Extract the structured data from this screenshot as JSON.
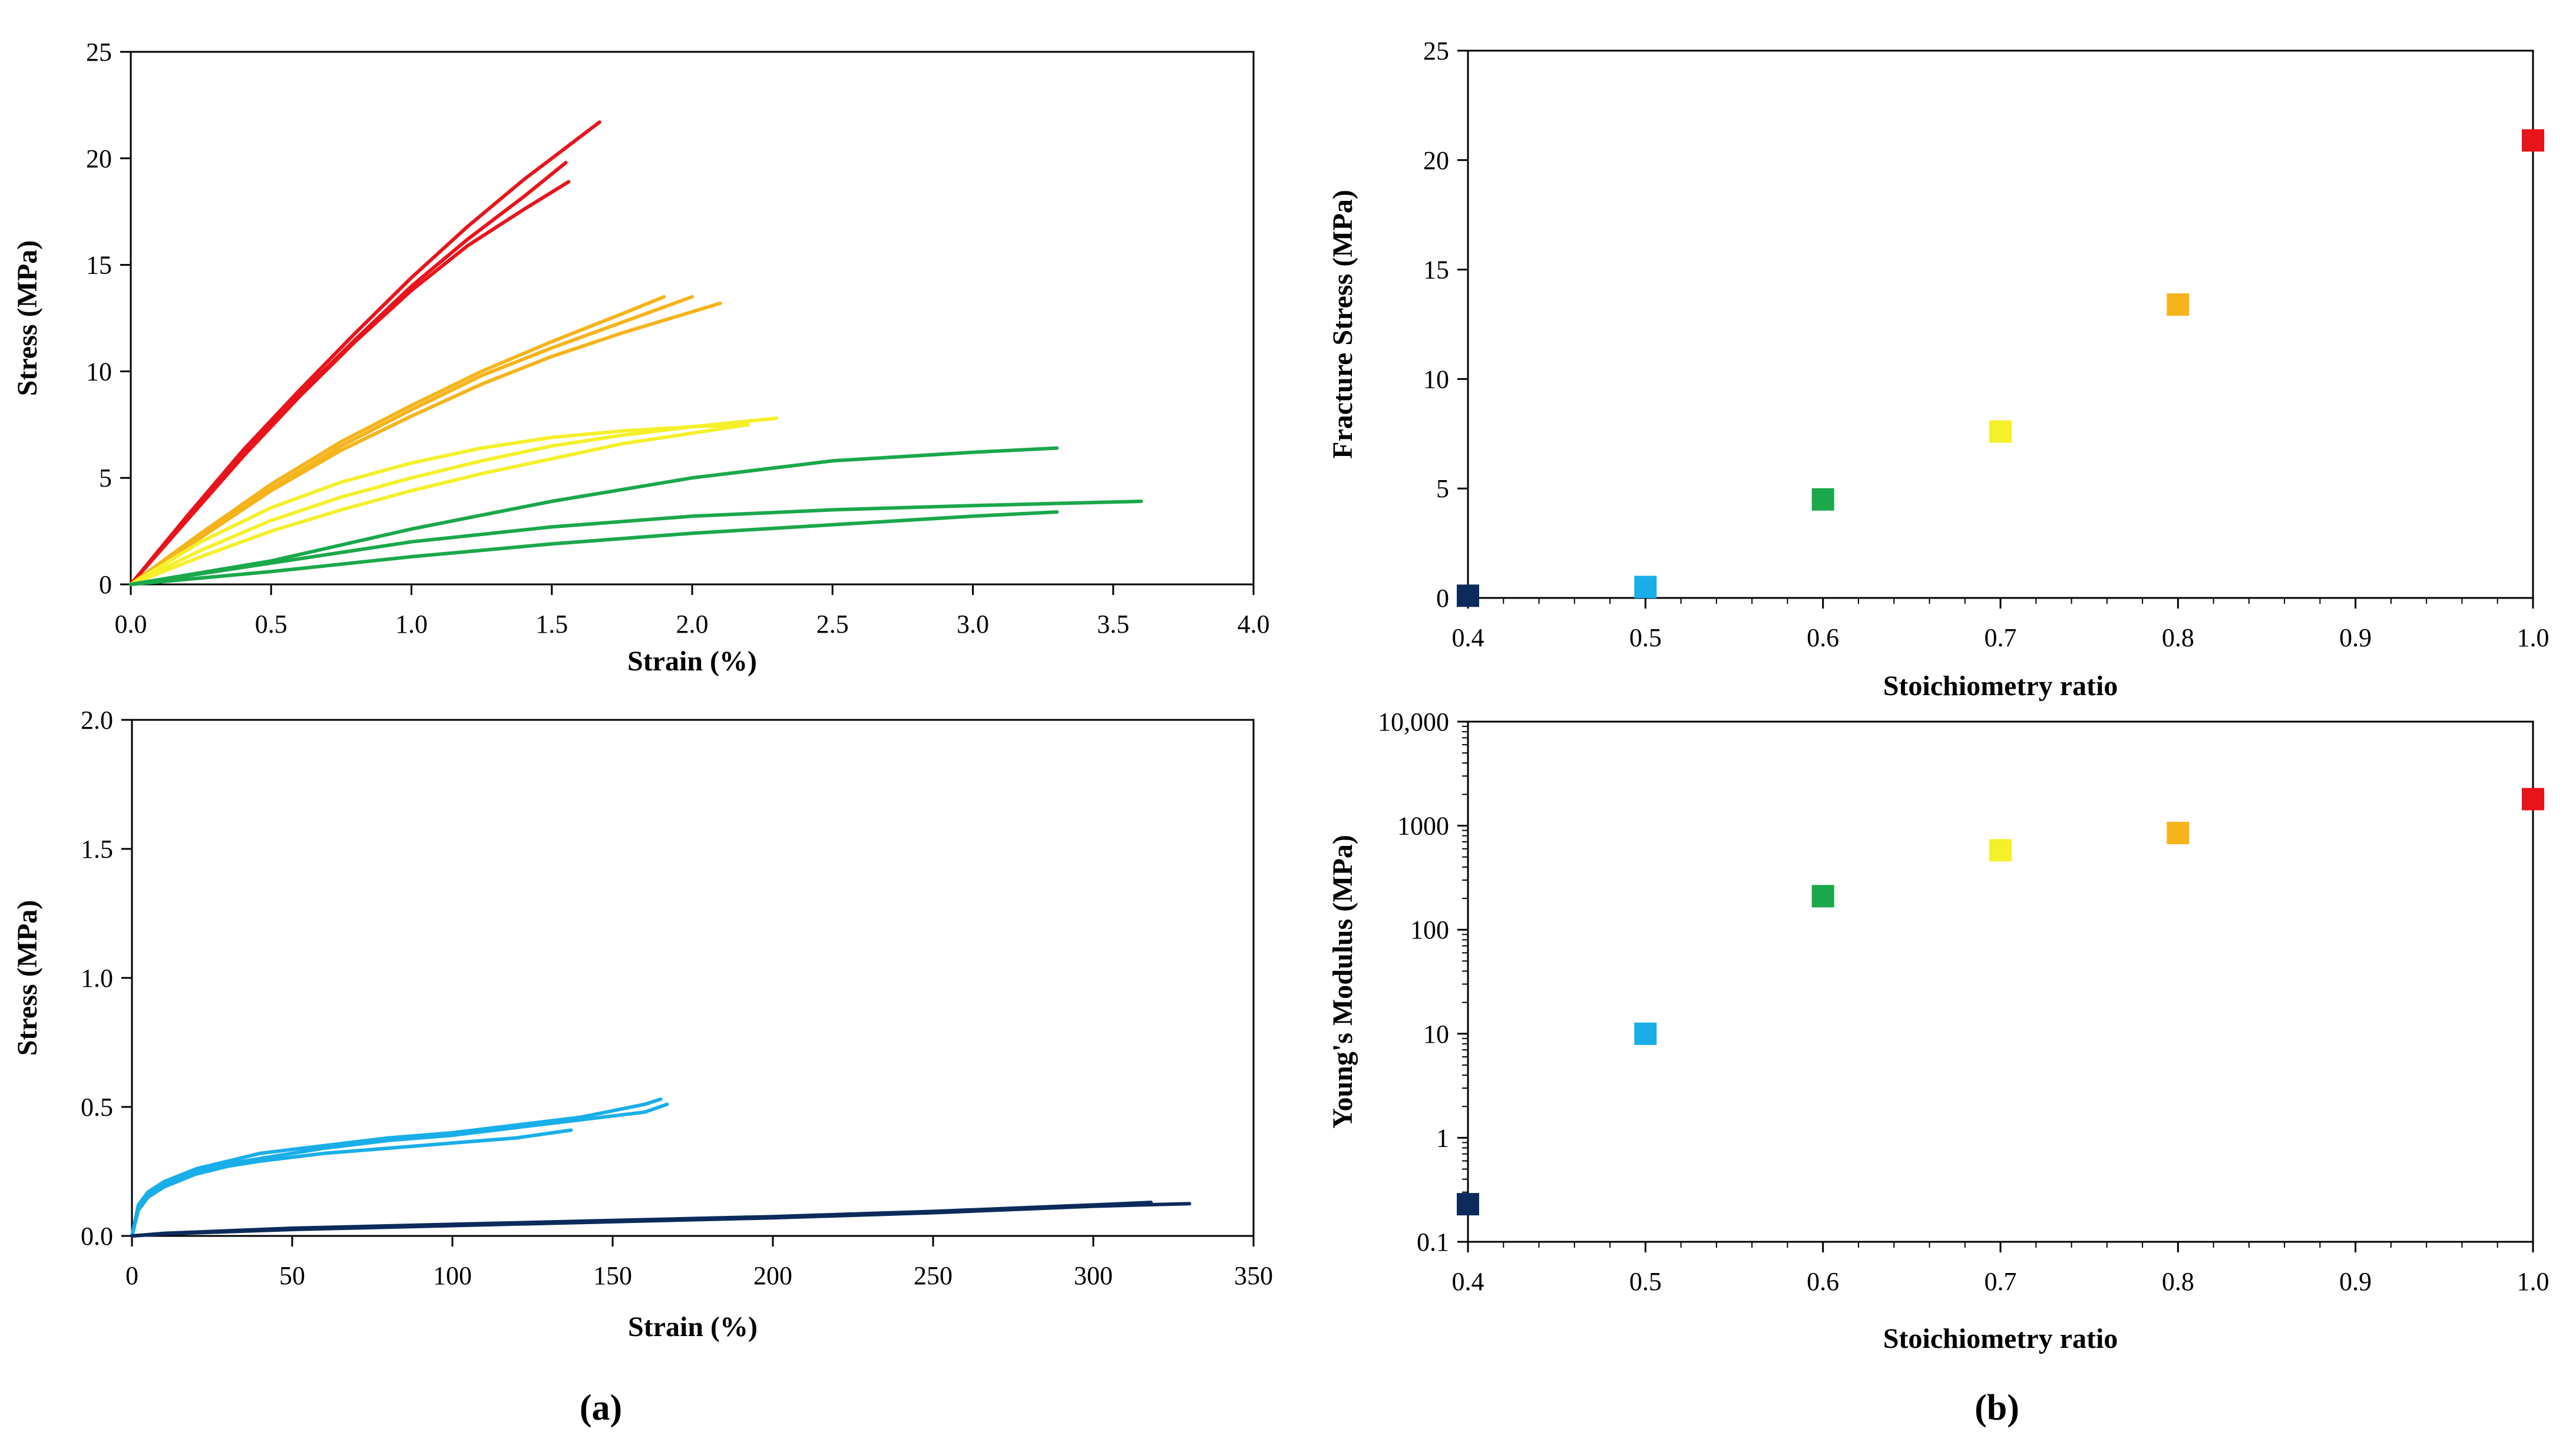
{
  "figure": {
    "panel_a_label": "(a)",
    "panel_b_label": "(b)"
  },
  "chart_data": [
    {
      "id": "stress_strain_top",
      "type": "line",
      "xlabel": "Strain (%)",
      "ylabel": "Stress (MPa)",
      "xlim": [
        0,
        4.0
      ],
      "ylim": [
        0,
        25
      ],
      "xticks": [
        0,
        0.5,
        1.0,
        1.5,
        2.0,
        2.5,
        3.0,
        3.5,
        4.0
      ],
      "xtick_labels": [
        "0.0",
        "0.5",
        "1.0",
        "1.5",
        "2.0",
        "2.5",
        "3.0",
        "3.5",
        "4.0"
      ],
      "yticks": [
        0,
        5,
        10,
        15,
        20,
        25
      ],
      "ytick_labels": [
        "0",
        "5",
        "10",
        "15",
        "20",
        "25"
      ],
      "grid": false,
      "series": [
        {
          "color": "#e8141b",
          "x": [
            0,
            0.2,
            0.4,
            0.6,
            0.8,
            1.0,
            1.2,
            1.4,
            1.52,
            1.67
          ],
          "y": [
            0,
            3.2,
            6.3,
            9.1,
            11.8,
            14.4,
            16.8,
            19.0,
            20.2,
            21.7
          ]
        },
        {
          "color": "#e8141b",
          "x": [
            0,
            0.2,
            0.4,
            0.6,
            0.8,
            1.0,
            1.2,
            1.4,
            1.55
          ],
          "y": [
            0,
            3.1,
            6.1,
            8.9,
            11.5,
            14.0,
            16.2,
            18.2,
            19.8
          ]
        },
        {
          "color": "#e8141b",
          "x": [
            0,
            0.2,
            0.4,
            0.6,
            0.8,
            1.0,
            1.2,
            1.4,
            1.56
          ],
          "y": [
            0,
            3.0,
            6.0,
            8.8,
            11.4,
            13.8,
            15.9,
            17.6,
            18.9
          ]
        },
        {
          "color": "#f5b41b",
          "x": [
            0,
            0.25,
            0.5,
            0.75,
            1.0,
            1.25,
            1.5,
            1.75,
            1.9
          ],
          "y": [
            0,
            2.4,
            4.7,
            6.7,
            8.4,
            10.0,
            11.4,
            12.7,
            13.5
          ]
        },
        {
          "color": "#f5b41b",
          "x": [
            0,
            0.25,
            0.5,
            0.75,
            1.0,
            1.25,
            1.5,
            1.75,
            2.0
          ],
          "y": [
            0,
            2.3,
            4.5,
            6.5,
            8.2,
            9.8,
            11.1,
            12.3,
            13.5
          ]
        },
        {
          "color": "#f5b41b",
          "x": [
            0,
            0.25,
            0.5,
            0.75,
            1.0,
            1.25,
            1.5,
            1.75,
            2.0,
            2.1
          ],
          "y": [
            0,
            2.2,
            4.4,
            6.3,
            7.9,
            9.4,
            10.7,
            11.8,
            12.8,
            13.2
          ]
        },
        {
          "color": "#f5f02a",
          "x": [
            0,
            0.25,
            0.5,
            0.75,
            1.0,
            1.25,
            1.5,
            1.75,
            2.0,
            2.2
          ],
          "y": [
            0,
            2.0,
            3.6,
            4.8,
            5.7,
            6.4,
            6.9,
            7.2,
            7.4,
            7.5
          ]
        },
        {
          "color": "#f5f02a",
          "x": [
            0,
            0.25,
            0.5,
            0.75,
            1.0,
            1.25,
            1.5,
            1.75,
            2.0,
            2.3
          ],
          "y": [
            0,
            1.6,
            3.0,
            4.1,
            5.0,
            5.8,
            6.5,
            7.0,
            7.4,
            7.8
          ]
        },
        {
          "color": "#f5f02a",
          "x": [
            0,
            0.25,
            0.5,
            0.75,
            1.0,
            1.25,
            1.5,
            1.75,
            2.0,
            2.2
          ],
          "y": [
            0,
            1.3,
            2.5,
            3.5,
            4.4,
            5.2,
            5.9,
            6.6,
            7.1,
            7.5
          ]
        },
        {
          "color": "#1aa84b",
          "x": [
            0,
            0.5,
            1.0,
            1.5,
            2.0,
            2.5,
            3.0,
            3.3
          ],
          "y": [
            0,
            1.1,
            2.6,
            3.9,
            5.0,
            5.8,
            6.2,
            6.4
          ]
        },
        {
          "color": "#1aa84b",
          "x": [
            0,
            0.5,
            1.0,
            1.5,
            2.0,
            2.5,
            3.0,
            3.6
          ],
          "y": [
            0,
            1.0,
            2.0,
            2.7,
            3.2,
            3.5,
            3.7,
            3.9
          ]
        },
        {
          "color": "#1aa84b",
          "x": [
            0,
            0.5,
            1.0,
            1.5,
            2.0,
            2.5,
            3.0,
            3.3
          ],
          "y": [
            0,
            0.6,
            1.3,
            1.9,
            2.4,
            2.8,
            3.2,
            3.4
          ]
        }
      ]
    },
    {
      "id": "stress_strain_bottom",
      "type": "line",
      "xlabel": "Strain (%)",
      "ylabel": "Stress (MPa)",
      "xlim": [
        0,
        350
      ],
      "ylim": [
        0,
        2.0
      ],
      "xticks": [
        0,
        50,
        100,
        150,
        200,
        250,
        300,
        350
      ],
      "xtick_labels": [
        "0",
        "50",
        "100",
        "150",
        "200",
        "250",
        "300",
        "350"
      ],
      "yticks": [
        0,
        0.5,
        1.0,
        1.5,
        2.0
      ],
      "ytick_labels": [
        "0.0",
        "0.5",
        "1.0",
        "1.5",
        "2.0"
      ],
      "grid": false,
      "series": [
        {
          "color": "#1aaee8",
          "x": [
            0,
            2,
            5,
            10,
            20,
            30,
            40,
            60,
            80,
            100,
            120,
            140,
            160,
            165
          ],
          "y": [
            0,
            0.12,
            0.17,
            0.21,
            0.26,
            0.29,
            0.32,
            0.35,
            0.38,
            0.4,
            0.43,
            0.46,
            0.51,
            0.53
          ]
        },
        {
          "color": "#1aaee8",
          "x": [
            0,
            2,
            5,
            10,
            20,
            30,
            40,
            60,
            80,
            100,
            120,
            140,
            160,
            167
          ],
          "y": [
            0,
            0.11,
            0.16,
            0.2,
            0.25,
            0.28,
            0.3,
            0.34,
            0.37,
            0.39,
            0.42,
            0.45,
            0.48,
            0.51
          ]
        },
        {
          "color": "#1aaee8",
          "x": [
            0,
            2,
            5,
            10,
            20,
            30,
            40,
            60,
            80,
            100,
            120,
            137
          ],
          "y": [
            0,
            0.1,
            0.15,
            0.19,
            0.24,
            0.27,
            0.29,
            0.32,
            0.34,
            0.36,
            0.38,
            0.41
          ]
        },
        {
          "color": "#0c2b5c",
          "x": [
            0,
            10,
            50,
            100,
            150,
            200,
            250,
            300,
            318
          ],
          "y": [
            0,
            0.01,
            0.03,
            0.045,
            0.06,
            0.075,
            0.095,
            0.12,
            0.13
          ]
        },
        {
          "color": "#0c2b5c",
          "x": [
            0,
            10,
            50,
            100,
            150,
            200,
            250,
            300,
            330
          ],
          "y": [
            0,
            0.008,
            0.025,
            0.04,
            0.055,
            0.07,
            0.09,
            0.115,
            0.125
          ]
        }
      ]
    },
    {
      "id": "fracture_stress",
      "type": "scatter",
      "xlabel": "Stoichiometry ratio",
      "ylabel": "Fracture Stress (MPa)",
      "xlim": [
        0.4,
        1.0
      ],
      "ylim": [
        0,
        25
      ],
      "xticks": [
        0.4,
        0.5,
        0.6,
        0.7,
        0.8,
        0.9,
        1.0
      ],
      "xtick_labels": [
        "0.4",
        "0.5",
        "0.6",
        "0.7",
        "0.8",
        "0.9",
        "1.0"
      ],
      "yticks": [
        0,
        5,
        10,
        15,
        20,
        25
      ],
      "ytick_labels": [
        "0",
        "5",
        "10",
        "15",
        "20",
        "25"
      ],
      "grid": false,
      "points": [
        {
          "x": 0.4,
          "y": 0.1,
          "color": "#0c2b5c"
        },
        {
          "x": 0.5,
          "y": 0.5,
          "color": "#1aaee8"
        },
        {
          "x": 0.6,
          "y": 4.5,
          "color": "#1aa84b"
        },
        {
          "x": 0.7,
          "y": 7.6,
          "color": "#f5f02a"
        },
        {
          "x": 0.8,
          "y": 13.4,
          "color": "#f5b41b"
        },
        {
          "x": 1.0,
          "y": 20.9,
          "color": "#e8141b"
        }
      ]
    },
    {
      "id": "youngs_modulus",
      "type": "scatter",
      "xlabel": "Stoichiometry ratio",
      "ylabel": "Young's Modulus (MPa)",
      "xlim": [
        0.4,
        1.0
      ],
      "ylim": [
        0.1,
        10000
      ],
      "yscale": "log",
      "xticks": [
        0.4,
        0.5,
        0.6,
        0.7,
        0.8,
        0.9,
        1.0
      ],
      "xtick_labels": [
        "0.4",
        "0.5",
        "0.6",
        "0.7",
        "0.8",
        "0.9",
        "1.0"
      ],
      "yticks": [
        0.1,
        1,
        10,
        100,
        1000,
        10000
      ],
      "ytick_labels": [
        "0.1",
        "1",
        "10",
        "100",
        "1000",
        "10,000"
      ],
      "grid": false,
      "points": [
        {
          "x": 0.4,
          "y": 0.23,
          "color": "#0c2b5c"
        },
        {
          "x": 0.5,
          "y": 10,
          "color": "#1aaee8"
        },
        {
          "x": 0.6,
          "y": 210,
          "color": "#1aa84b"
        },
        {
          "x": 0.7,
          "y": 580,
          "color": "#f5f02a"
        },
        {
          "x": 0.8,
          "y": 850,
          "color": "#f5b41b"
        },
        {
          "x": 1.0,
          "y": 1800,
          "color": "#e8141b"
        }
      ]
    }
  ]
}
